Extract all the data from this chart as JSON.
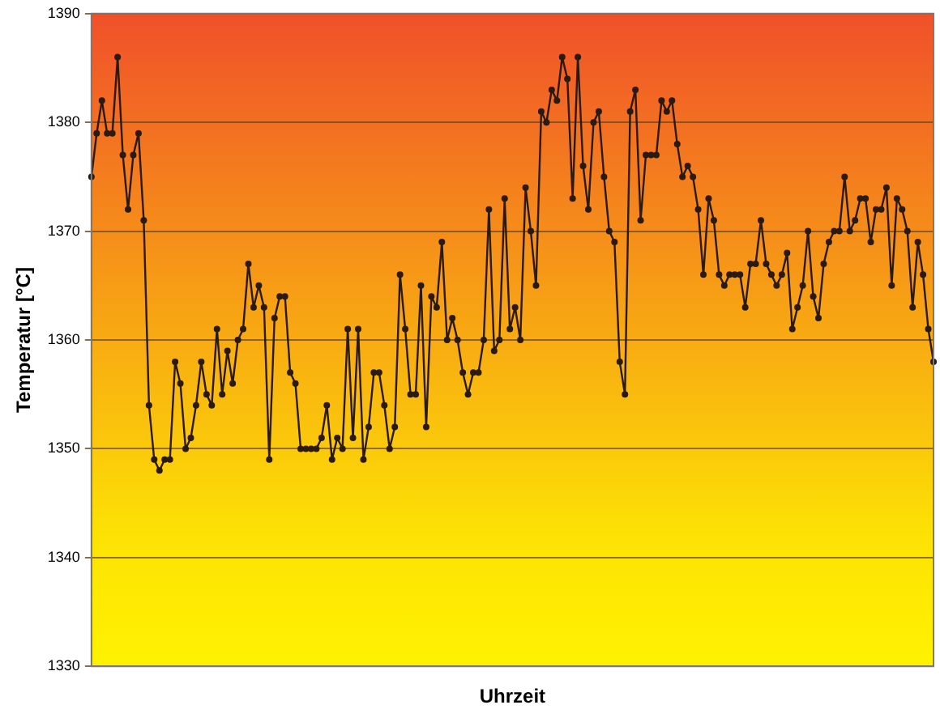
{
  "chart_data": {
    "type": "line",
    "xlabel": "Uhrzeit",
    "ylabel": "Temperatur [°C]",
    "ylim": [
      1330,
      1390
    ],
    "yticks": [
      1330,
      1340,
      1350,
      1360,
      1370,
      1380,
      1390
    ],
    "grid": "y",
    "legend": false,
    "marker": "circle",
    "line_style": "solid",
    "tick_labels": "y",
    "categories": [
      null,
      null,
      null,
      null,
      null,
      null,
      null,
      null,
      null,
      null,
      null,
      null,
      null,
      null,
      null,
      null,
      null,
      null,
      null,
      null,
      null,
      null,
      null,
      null,
      null,
      null,
      null,
      null,
      null,
      null,
      null,
      null,
      null,
      null,
      null,
      null,
      null,
      null,
      null,
      null,
      null,
      null,
      null,
      null,
      null,
      null,
      null,
      null,
      null,
      null,
      null,
      null,
      null,
      null,
      null,
      null,
      null,
      null,
      null,
      null,
      null,
      null,
      null,
      null,
      null,
      null,
      null,
      null,
      null,
      null,
      null,
      null,
      null,
      null,
      null,
      null,
      null,
      null,
      null,
      null,
      null,
      null,
      null,
      null,
      null,
      null,
      null,
      null,
      null,
      null,
      null,
      null,
      null,
      null,
      null,
      null,
      null,
      null,
      null,
      null,
      null,
      null,
      null,
      null,
      null,
      null,
      null,
      null,
      null,
      null,
      null,
      null,
      null,
      null,
      null,
      null,
      null,
      null,
      null,
      null,
      null,
      null,
      null,
      null,
      null,
      null,
      null,
      null,
      null,
      null,
      null,
      null,
      null,
      null,
      null,
      null,
      null,
      null,
      null,
      null,
      null,
      null,
      null,
      null,
      null,
      null,
      null,
      null,
      null,
      null,
      null,
      null,
      null,
      null,
      null,
      null,
      null,
      null,
      null,
      null,
      null,
      null
    ],
    "series": [
      {
        "color": "#2b1a10",
        "values": [
          1375,
          1379,
          1382,
          1379,
          1379,
          1386,
          1377,
          1372,
          1377,
          1379,
          1371,
          1354,
          1349,
          1348,
          1349,
          1349,
          1358,
          1356,
          1350,
          1351,
          1354,
          1358,
          1355,
          1354,
          1361,
          1355,
          1359,
          1356,
          1360,
          1361,
          1367,
          1363,
          1365,
          1363,
          1349,
          1362,
          1364,
          1364,
          1357,
          1356,
          1350,
          1350,
          1350,
          1350,
          1351,
          1354,
          1349,
          1351,
          1350,
          1361,
          1351,
          1361,
          1349,
          1352,
          1357,
          1357,
          1354,
          1350,
          1352,
          1366,
          1361,
          1355,
          1355,
          1365,
          1352,
          1364,
          1363,
          1369,
          1360,
          1362,
          1360,
          1357,
          1355,
          1357,
          1357,
          1360,
          1372,
          1359,
          1360,
          1373,
          1361,
          1363,
          1360,
          1374,
          1370,
          1365,
          1381,
          1380,
          1383,
          1382,
          1386,
          1384,
          1373,
          1386,
          1376,
          1372,
          1380,
          1381,
          1375,
          1370,
          1369,
          1358,
          1355,
          1381,
          1383,
          1371,
          1377,
          1377,
          1377,
          1382,
          1381,
          1382,
          1378,
          1375,
          1376,
          1375,
          1372,
          1366,
          1373,
          1371,
          1366,
          1365,
          1366,
          1366,
          1366,
          1363,
          1367,
          1367,
          1371,
          1367,
          1366,
          1365,
          1366,
          1368,
          1361,
          1363,
          1365,
          1370,
          1364,
          1362,
          1367,
          1369,
          1370,
          1370,
          1375,
          1370,
          1371,
          1373,
          1373,
          1369,
          1372,
          1372,
          1374,
          1365,
          1373,
          1372,
          1370,
          1363,
          1369,
          1366,
          1361,
          1358
        ]
      }
    ]
  }
}
